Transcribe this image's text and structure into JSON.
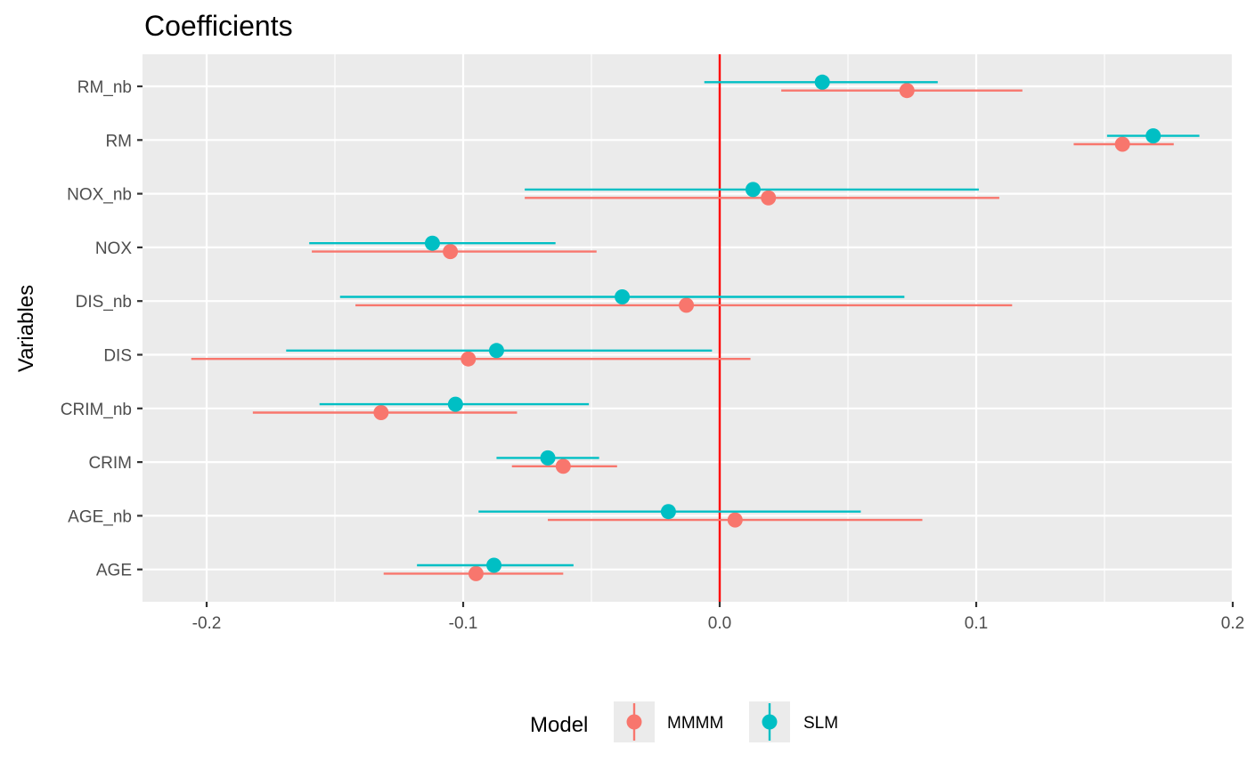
{
  "chart_data": {
    "type": "scatter",
    "title": "Coefficients",
    "xlabel": "",
    "ylabel": "Variables",
    "xlim": [
      -0.225,
      0.2
    ],
    "x_ticks": [
      -0.2,
      -0.1,
      0.0,
      0.1,
      0.2
    ],
    "x_tick_labels": [
      "-0.2",
      "-0.1",
      "0.0",
      "0.1",
      "0.2"
    ],
    "categories": [
      "AGE",
      "AGE_nb",
      "CRIM",
      "CRIM_nb",
      "DIS",
      "DIS_nb",
      "NOX",
      "NOX_nb",
      "RM",
      "RM_nb"
    ],
    "reference_line": {
      "x": 0.0,
      "color": "#ff0000"
    },
    "grid": true,
    "legend": {
      "title": "Model",
      "position": "bottom"
    },
    "series": [
      {
        "name": "MMMM",
        "color": "#f8766d",
        "estimates": [
          -0.095,
          0.006,
          -0.061,
          -0.132,
          -0.098,
          -0.013,
          -0.105,
          0.019,
          0.157,
          0.073
        ],
        "lower": [
          -0.131,
          -0.067,
          -0.081,
          -0.182,
          -0.206,
          -0.142,
          -0.159,
          -0.076,
          0.138,
          0.024
        ],
        "upper": [
          -0.061,
          0.079,
          -0.04,
          -0.079,
          0.012,
          0.114,
          -0.048,
          0.109,
          0.177,
          0.118
        ]
      },
      {
        "name": "SLM",
        "color": "#00bfc4",
        "estimates": [
          -0.088,
          -0.02,
          -0.067,
          -0.103,
          -0.087,
          -0.038,
          -0.112,
          0.013,
          0.169,
          0.04
        ],
        "lower": [
          -0.118,
          -0.094,
          -0.087,
          -0.156,
          -0.169,
          -0.148,
          -0.16,
          -0.076,
          0.151,
          -0.006
        ],
        "upper": [
          -0.057,
          0.055,
          -0.047,
          -0.051,
          -0.003,
          0.072,
          -0.064,
          0.101,
          0.187,
          0.085
        ]
      }
    ]
  }
}
